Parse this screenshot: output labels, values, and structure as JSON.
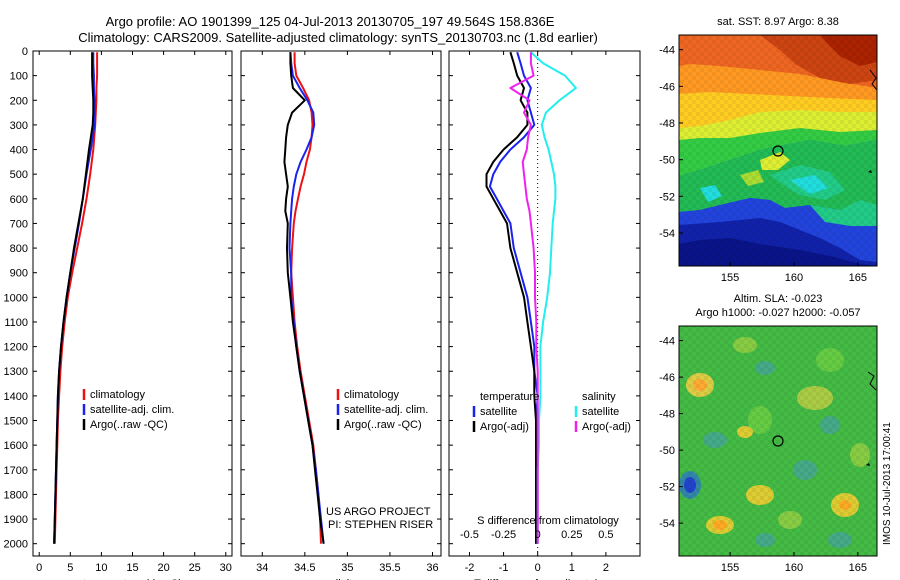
{
  "title_line1": "Argo profile: AO 1901399_125 04-Jul-2013 20130705_197 49.564S 158.836E",
  "title_line2": "Climatology: CARS2009. Satellite-adjusted climatology: synTS_20130703.nc (1.8d earlier)",
  "colors": {
    "climatology": "#ee1111",
    "satellite": "#1a22ee",
    "argo": "#000000",
    "cyan": "#22eeee",
    "magenta": "#ee22ee"
  },
  "depth_ticks": [
    "0",
    "100",
    "200",
    "300",
    "400",
    "500",
    "600",
    "700",
    "800",
    "900",
    "1000",
    "1100",
    "1200",
    "1300",
    "1400",
    "1500",
    "1600",
    "1700",
    "1800",
    "1900",
    "2000"
  ],
  "chart_data": [
    {
      "type": "line",
      "xlabel": "temperature (deg C)",
      "xlim": [
        -1,
        31
      ],
      "ylim": [
        2050,
        0
      ],
      "xticks": [
        "0",
        "5",
        "10",
        "15",
        "20",
        "25",
        "30"
      ],
      "xtick_values": [
        0,
        5,
        10,
        15,
        20,
        25,
        30
      ],
      "legend": [
        "climatology",
        "satellite-adj. clim.",
        "Argo(..raw -QC)"
      ],
      "legend_location": "lower-center",
      "depth": [
        5,
        50,
        100,
        150,
        200,
        250,
        300,
        400,
        500,
        600,
        700,
        800,
        900,
        1000,
        1100,
        1200,
        1300,
        1400,
        1500,
        1600,
        1700,
        1800,
        1900,
        2000
      ],
      "series": [
        {
          "name": "climatology",
          "values": [
            9.3,
            9.3,
            9.3,
            9.2,
            9.2,
            9.1,
            9.0,
            8.7,
            8.2,
            7.6,
            6.9,
            6.1,
            5.3,
            4.6,
            4.1,
            3.7,
            3.4,
            3.2,
            3.0,
            2.9,
            2.8,
            2.7,
            2.6,
            2.5
          ]
        },
        {
          "name": "satellite-adj. clim.",
          "values": [
            8.7,
            8.7,
            8.8,
            8.8,
            8.9,
            8.9,
            8.9,
            8.3,
            7.6,
            7.0,
            6.4,
            5.7,
            5.0,
            4.4,
            3.9,
            3.5,
            3.2,
            3.0,
            2.9,
            2.8,
            2.7,
            2.6,
            2.5,
            2.4
          ]
        },
        {
          "name": "Argo(..raw -QC)",
          "values": [
            8.5,
            8.5,
            8.5,
            8.6,
            8.7,
            8.7,
            8.6,
            8.0,
            7.5,
            7.0,
            6.3,
            5.6,
            5.0,
            4.4,
            3.9,
            3.5,
            3.2,
            3.0,
            2.9,
            2.8,
            2.7,
            2.6,
            2.5,
            2.4
          ]
        }
      ]
    },
    {
      "type": "line",
      "xlabel": "salinity",
      "xlim": [
        33.75,
        36.1
      ],
      "ylim": [
        2050,
        0
      ],
      "xticks": [
        "34",
        "34.5",
        "35",
        "35.5",
        "36"
      ],
      "xtick_values": [
        34,
        34.5,
        35,
        35.5,
        36
      ],
      "legend": [
        "climatology",
        "satellite-adj. clim.",
        "Argo(..raw -QC)"
      ],
      "legend_location": "lower-right",
      "footer": [
        "US ARGO PROJECT",
        "PI: STEPHEN RISER"
      ],
      "depth": [
        5,
        50,
        100,
        150,
        200,
        250,
        300,
        350,
        400,
        450,
        500,
        550,
        600,
        650,
        700,
        800,
        900,
        1000,
        1100,
        1200,
        1300,
        1400,
        1500,
        1600,
        1700,
        1800,
        1900,
        2000
      ],
      "series": [
        {
          "name": "climatology",
          "values": [
            34.38,
            34.38,
            34.4,
            34.48,
            34.55,
            34.58,
            34.59,
            34.58,
            34.56,
            34.52,
            34.49,
            34.45,
            34.42,
            34.39,
            34.37,
            34.35,
            34.34,
            34.36,
            34.38,
            34.41,
            34.45,
            34.5,
            34.55,
            34.6,
            34.63,
            34.66,
            34.68,
            34.69
          ]
        },
        {
          "name": "satellite-adj. clim.",
          "values": [
            34.33,
            34.34,
            34.36,
            34.44,
            34.53,
            34.6,
            34.61,
            34.58,
            34.52,
            34.45,
            34.4,
            34.37,
            34.35,
            34.34,
            34.33,
            34.32,
            34.34,
            34.34,
            34.37,
            34.4,
            34.44,
            34.49,
            34.54,
            34.59,
            34.63,
            34.66,
            34.69,
            34.72
          ]
        },
        {
          "name": "Argo(..raw -QC)",
          "values": [
            34.33,
            34.33,
            34.34,
            34.36,
            34.5,
            34.35,
            34.3,
            34.28,
            34.27,
            34.26,
            34.28,
            34.3,
            34.28,
            34.27,
            34.3,
            34.29,
            34.3,
            34.33,
            34.36,
            34.4,
            34.44,
            34.49,
            34.54,
            34.59,
            34.62,
            34.65,
            34.68,
            34.72
          ]
        }
      ]
    },
    {
      "type": "line",
      "xlabel": "T difference from climatology",
      "xlabel_top": "S difference from climatology",
      "xlim": [
        -2.6,
        3.0
      ],
      "ylim": [
        2050,
        0
      ],
      "xticks": [
        "-2",
        "-1",
        "0",
        "1",
        "2"
      ],
      "xtick_values": [
        -2,
        -1,
        0,
        1,
        2
      ],
      "sticks": [
        "-0.5",
        "-0.25",
        "0",
        "0.25",
        "0.5"
      ],
      "stick_values": [
        -0.5,
        -0.25,
        0,
        0.25,
        0.5
      ],
      "legend_temperature": "temperature",
      "legend_salinity": "salinity",
      "legend": [
        "satellite",
        "Argo(-adj)",
        "satellite",
        "Argo(-adj)"
      ],
      "legend_location": "lower-center",
      "depth": [
        5,
        50,
        100,
        150,
        200,
        250,
        300,
        350,
        400,
        450,
        500,
        550,
        600,
        650,
        700,
        800,
        900,
        1000,
        1100,
        1200,
        1300,
        1400,
        1500,
        1600,
        1700,
        1800,
        1900,
        2000
      ],
      "series": [
        {
          "name": "T satellite",
          "values": [
            -0.6,
            -0.5,
            -0.4,
            -0.2,
            -0.3,
            -0.2,
            -0.1,
            -0.4,
            -0.8,
            -1.1,
            -1.3,
            -1.4,
            -1.2,
            -1.0,
            -0.8,
            -0.7,
            -0.5,
            -0.3,
            -0.2,
            -0.1,
            -0.1,
            0.0,
            -0.05,
            -0.05,
            -0.05,
            -0.05,
            -0.05,
            -0.05
          ]
        },
        {
          "name": "T Argo(-adj)",
          "values": [
            -0.8,
            -0.7,
            -0.6,
            -0.4,
            -0.5,
            -0.3,
            -0.3,
            -0.6,
            -1.0,
            -1.3,
            -1.5,
            -1.5,
            -1.3,
            -1.1,
            -0.9,
            -0.8,
            -0.6,
            -0.4,
            -0.3,
            -0.2,
            -0.1,
            -0.1,
            -0.05,
            -0.05,
            -0.05,
            -0.05,
            -0.05,
            -0.05
          ]
        },
        {
          "name": "S satellite",
          "values": [
            -0.05,
            0.04,
            0.2,
            0.28,
            0.16,
            0.06,
            0.03,
            0.05,
            0.08,
            0.1,
            0.12,
            0.13,
            0.13,
            0.12,
            0.11,
            0.1,
            0.09,
            0.07,
            0.04,
            0.02,
            0.02,
            0.02,
            0.01,
            0.01,
            0.0,
            0.0,
            0.0,
            0.0
          ]
        },
        {
          "name": "S Argo(-adj)",
          "values": [
            -0.05,
            -0.05,
            -0.03,
            -0.2,
            -0.06,
            -0.1,
            -0.05,
            -0.07,
            -0.08,
            -0.11,
            -0.1,
            -0.09,
            -0.08,
            -0.06,
            -0.05,
            -0.03,
            -0.02,
            -0.02,
            -0.01,
            -0.01,
            0.0,
            0.0,
            0.0,
            0.0,
            0.0,
            0.0,
            0.0,
            0.0
          ]
        }
      ]
    },
    {
      "type": "heatmap",
      "title": "sat. SST: 8.97 Argo: 8.38",
      "xlim": [
        151,
        166.5
      ],
      "ylim": [
        -55.8,
        -43.2
      ],
      "xticks": [
        "155",
        "160",
        "165"
      ],
      "xtick_values": [
        155,
        160,
        165
      ],
      "yticks": [
        "-44",
        "-46",
        "-48",
        "-50",
        "-52",
        "-54"
      ],
      "ytick_values": [
        -44,
        -46,
        -48,
        -50,
        -52,
        -54
      ],
      "marker": {
        "lon": 158.836,
        "lat": -49.564
      }
    },
    {
      "type": "heatmap",
      "title": "Altim. SLA: -0.023",
      "subtitle": "Argo h1000: -0.027 h2000: -0.057",
      "side_label": "IMOS 10-Jul-2013 17:00:41",
      "xlim": [
        151,
        166.5
      ],
      "ylim": [
        -55.8,
        -43.2
      ],
      "xticks": [
        "155",
        "160",
        "165"
      ],
      "xtick_values": [
        155,
        160,
        165
      ],
      "yticks": [
        "-44",
        "-46",
        "-48",
        "-50",
        "-52",
        "-54"
      ],
      "ytick_values": [
        -44,
        -46,
        -48,
        -50,
        -52,
        -54
      ],
      "marker": {
        "lon": 158.836,
        "lat": -49.564
      }
    }
  ]
}
